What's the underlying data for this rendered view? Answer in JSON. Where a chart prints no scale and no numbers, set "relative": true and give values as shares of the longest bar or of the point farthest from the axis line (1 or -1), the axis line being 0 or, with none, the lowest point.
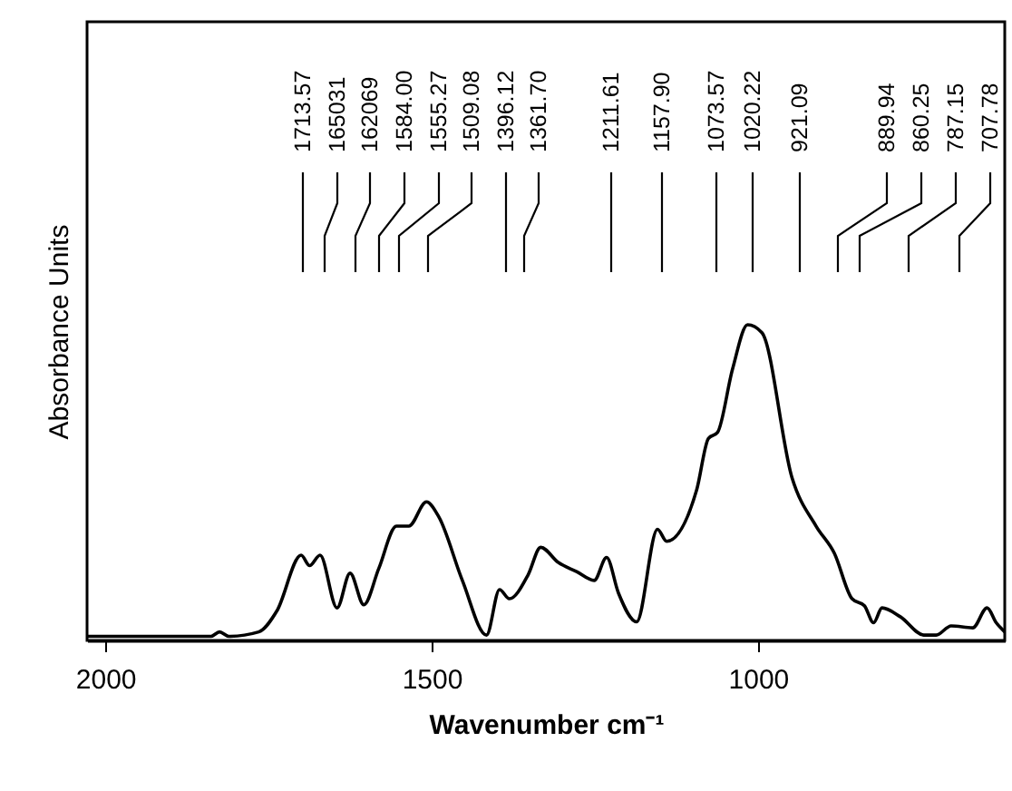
{
  "chart_data": {
    "type": "line",
    "xlabel": "Wavenumber cm⁻¹",
    "ylabel": "Absorbance Units",
    "relative": true,
    "xlim": [
      2028,
      622
    ],
    "xticks": [
      2000,
      1500,
      1000
    ],
    "x": [
      2027,
      1838,
      1825,
      1811,
      1765,
      1737,
      1700,
      1687,
      1671,
      1645,
      1625,
      1604,
      1581,
      1554,
      1535,
      1508,
      1489,
      1453,
      1416,
      1396,
      1381,
      1352,
      1333,
      1306,
      1278,
      1251,
      1232,
      1214,
      1186,
      1154,
      1140,
      1094,
      1076,
      1062,
      1039,
      1016,
      994,
      948,
      911,
      883,
      856,
      837,
      823,
      810,
      782,
      746,
      727,
      704,
      671,
      649,
      635,
      622
    ],
    "series": [
      {
        "color": "#000000",
        "values": [
          0.013,
          0.013,
          0.027,
          0.013,
          0.027,
          0.094,
          0.27,
          0.237,
          0.27,
          0.103,
          0.213,
          0.113,
          0.228,
          0.362,
          0.362,
          0.439,
          0.391,
          0.19,
          0.017,
          0.161,
          0.132,
          0.209,
          0.295,
          0.247,
          0.218,
          0.19,
          0.263,
          0.151,
          0.059,
          0.352,
          0.314,
          0.477,
          0.64,
          0.659,
          0.86,
          1.0,
          0.975,
          0.516,
          0.362,
          0.276,
          0.132,
          0.11,
          0.056,
          0.103,
          0.075,
          0.017,
          0.017,
          0.046,
          0.04,
          0.103,
          0.056,
          0.027
        ]
      }
    ],
    "annotations": [
      "1713.57",
      "165031",
      "162069",
      "1584.00",
      "1555.27",
      "1509.08",
      "1396.12",
      "1361.70",
      "1211.61",
      "1157.90",
      "1073.57",
      "1020.22",
      "921.09",
      "889.94",
      "860.25",
      "787.15",
      "707.78"
    ]
  }
}
